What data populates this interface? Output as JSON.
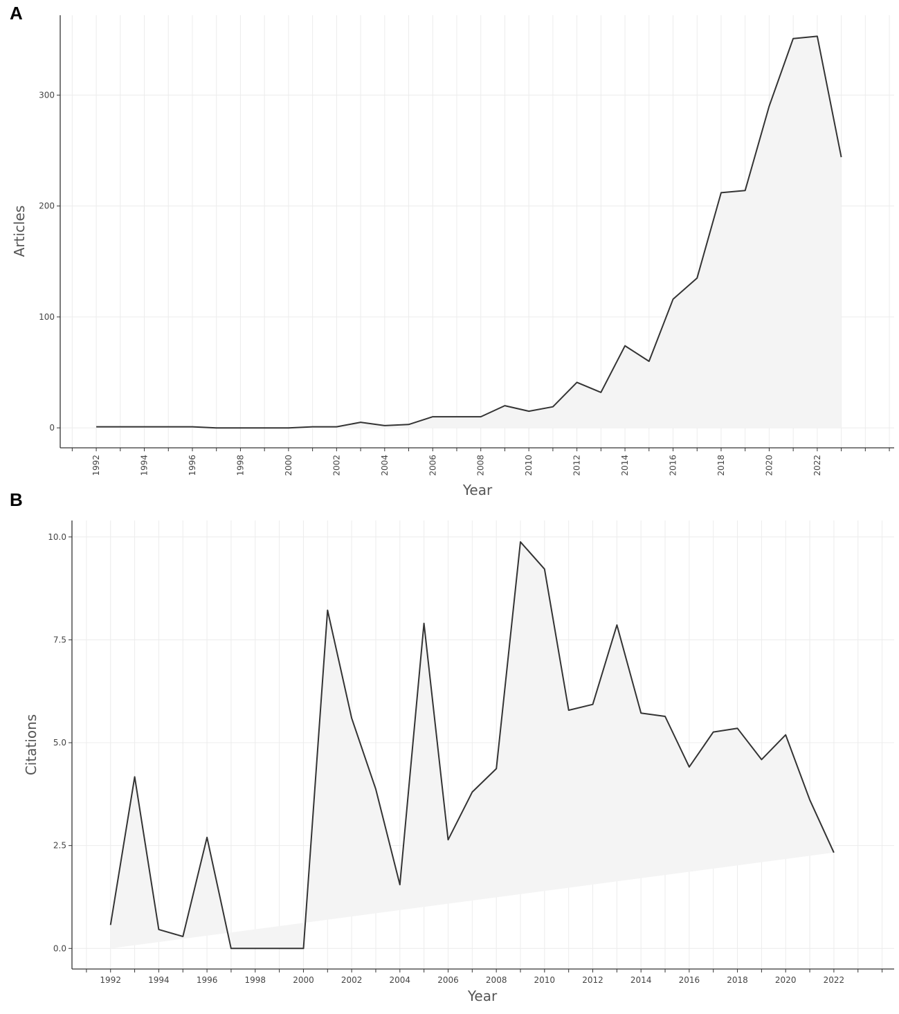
{
  "colors": {
    "line": "#333333",
    "area": "#f4f4f4",
    "grid": "#ececec",
    "axis": "#333333"
  },
  "chart_data": [
    {
      "panel_label": "A",
      "type": "area",
      "xlabel": "Year",
      "ylabel": "Articles",
      "xlim": [
        1990.5,
        2025.2
      ],
      "ylim": [
        -18,
        372
      ],
      "y_ticks": [
        0,
        100,
        200,
        300
      ],
      "x_ticks": [
        1992,
        1994,
        1996,
        1998,
        2000,
        2002,
        2004,
        2006,
        2008,
        2010,
        2012,
        2014,
        2016,
        2018,
        2020,
        2022
      ],
      "grid": true,
      "series": [
        {
          "x": [
            1992,
            1993,
            1994,
            1995,
            1996,
            1997,
            1998,
            1999,
            2000,
            2001,
            2002,
            2003,
            2004,
            2005,
            2006,
            2007,
            2008,
            2009,
            2010,
            2011,
            2012,
            2013,
            2014,
            2015,
            2016,
            2017,
            2018,
            2019,
            2020,
            2021,
            2022,
            2023
          ],
          "values": [
            1,
            1,
            1,
            1,
            1,
            0,
            0,
            0,
            0,
            1,
            1,
            5,
            2,
            3,
            10,
            10,
            10,
            20,
            15,
            19,
            41,
            32,
            74,
            60,
            116,
            135,
            212,
            214,
            290,
            351,
            353,
            244
          ]
        }
      ]
    },
    {
      "panel_label": "B",
      "type": "area",
      "xlabel": "Year",
      "ylabel": "Citations",
      "xlim": [
        1990.4,
        2024.5
      ],
      "ylim": [
        -0.5,
        10.4
      ],
      "y_ticks": [
        0.0,
        2.5,
        5.0,
        7.5,
        10.0
      ],
      "y_tick_labels": [
        "0.0",
        "2.5",
        "5.0",
        "7.5",
        "10.0"
      ],
      "x_ticks": [
        1992,
        1994,
        1996,
        1998,
        2000,
        2002,
        2004,
        2006,
        2008,
        2010,
        2012,
        2014,
        2016,
        2018,
        2020,
        2022
      ],
      "grid": true,
      "series": [
        {
          "x": [
            1992,
            1993,
            1994,
            1995,
            1996,
            1997,
            1998,
            1999,
            2000,
            2001,
            2002,
            2003,
            2004,
            2005,
            2006,
            2007,
            2008,
            2009,
            2010,
            2011,
            2012,
            2013,
            2014,
            2015,
            2016,
            2017,
            2018,
            2019,
            2020,
            2021,
            2022
          ],
          "values": [
            0.57,
            4.17,
            0.46,
            0.29,
            2.7,
            0.0,
            0.0,
            0.0,
            0.0,
            8.22,
            5.6,
            3.87,
            1.55,
            7.9,
            2.64,
            3.8,
            4.37,
            9.88,
            9.22,
            5.79,
            5.93,
            7.86,
            5.72,
            5.64,
            4.41,
            5.26,
            5.35,
            4.59,
            5.19,
            3.61,
            2.33
          ]
        }
      ]
    }
  ]
}
